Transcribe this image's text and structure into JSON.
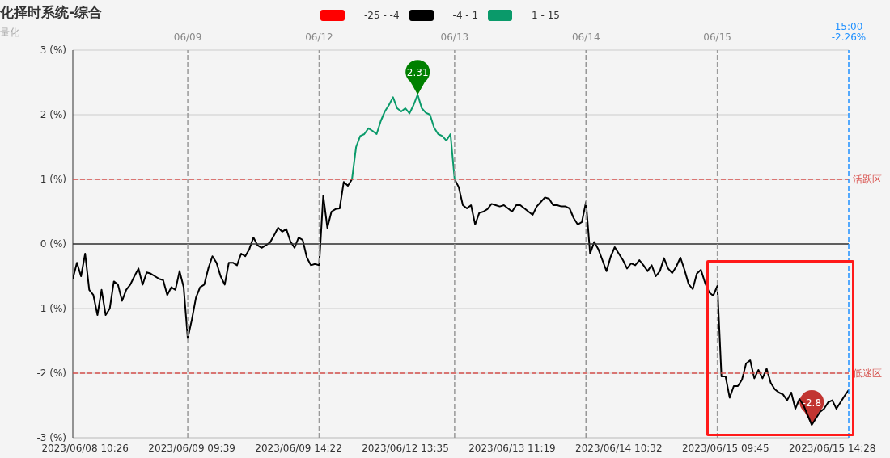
{
  "chart_data": {
    "type": "line",
    "title": "化择时系统-综合",
    "subtitle": "量化",
    "categories": [
      null,
      null,
      null,
      "2023/06/08 10:26",
      null,
      null,
      null,
      null,
      null,
      null,
      null,
      null,
      null,
      null,
      null,
      null,
      null,
      null,
      null,
      null,
      null,
      null,
      null,
      null,
      null,
      null,
      null,
      null,
      "06/09",
      "2023/06/09 09:39",
      null,
      null,
      null,
      null,
      null,
      null,
      null,
      null,
      null,
      null,
      null,
      null,
      null,
      null,
      null,
      null,
      null,
      null,
      null,
      null,
      null,
      null,
      null,
      null,
      null,
      "2023/06/09 14:22",
      null,
      null,
      null,
      null,
      "06/12",
      null,
      null,
      null,
      null,
      null,
      null,
      null,
      null,
      null,
      null,
      null,
      null,
      null,
      null,
      null,
      null,
      null,
      null,
      null,
      null,
      "2023/06/12 13:35",
      null,
      null,
      null,
      null,
      null,
      null,
      null,
      null,
      null,
      null,
      null,
      "06/13",
      null,
      null,
      null,
      null,
      null,
      null,
      null,
      null,
      null,
      null,
      null,
      null,
      null,
      "2023/06/13 11:19",
      null,
      null,
      null,
      null,
      null,
      null,
      null,
      null,
      null,
      null,
      null,
      null,
      null,
      null,
      null,
      null,
      null,
      "06/14",
      null,
      null,
      null,
      null,
      null,
      null,
      null,
      "2023/06/14 10:32",
      null,
      null,
      null,
      null,
      null,
      null,
      null,
      null,
      null,
      null,
      null,
      null,
      null,
      null,
      null,
      null,
      null,
      null,
      null,
      null,
      null,
      null,
      null,
      "06/15",
      null,
      "2023/06/15 09:45",
      null,
      null,
      null,
      null,
      null,
      null,
      null,
      null,
      null,
      null,
      null,
      null,
      null,
      null,
      null,
      null,
      null,
      null,
      null,
      null,
      null,
      null,
      null,
      null,
      null,
      "2023/06/15 14:28",
      null,
      null,
      null,
      "15:00"
    ],
    "series": [
      {
        "name": "-25 - -4",
        "color": "#ff0000",
        "values": [
          null,
          null,
          null,
          null,
          null,
          null,
          null,
          null,
          null,
          null,
          null,
          null,
          null,
          null,
          null,
          null,
          null,
          null,
          null,
          null,
          null,
          null,
          null,
          null,
          null,
          null,
          null,
          null,
          null,
          null,
          null,
          null,
          null,
          null,
          null,
          null,
          null,
          null,
          null,
          null,
          null,
          null,
          null,
          null,
          null,
          null,
          null,
          null,
          null,
          null,
          null,
          null,
          null,
          null,
          null,
          null,
          null,
          null,
          null,
          null,
          null,
          null,
          null,
          null,
          null,
          null,
          null,
          null,
          null,
          null,
          null,
          null,
          null,
          null,
          null,
          null,
          null,
          null,
          null,
          null,
          null,
          null,
          null,
          null,
          null,
          null,
          null,
          null,
          null,
          null,
          null,
          null,
          null,
          null,
          null,
          null,
          null,
          null,
          null,
          null,
          null,
          null,
          null,
          null,
          null,
          null,
          null,
          null,
          null,
          null,
          null,
          null,
          null,
          null,
          null,
          null,
          null,
          null,
          null,
          null,
          null,
          null,
          null,
          null,
          null,
          null,
          null,
          null,
          null,
          null,
          null,
          null,
          null,
          null,
          null,
          null,
          null,
          null,
          null,
          null,
          null,
          null,
          null,
          null,
          null,
          null,
          null,
          null,
          null,
          null,
          null,
          null,
          null,
          null,
          null,
          null,
          null,
          null,
          null,
          null,
          null,
          null,
          null,
          null,
          null,
          null,
          null,
          null,
          null,
          null,
          null,
          null,
          null,
          null,
          null,
          null,
          null,
          null,
          null,
          null,
          null,
          null,
          null,
          null,
          null,
          null,
          null,
          null,
          null,
          null
        ]
      },
      {
        "name": "-4 - 1",
        "color": "#000000",
        "values": [
          -0.54,
          -0.29,
          -0.5,
          -0.15,
          -0.71,
          -0.79,
          -1.1,
          -0.71,
          -1.1,
          -1.0,
          -0.58,
          -0.63,
          -0.88,
          -0.71,
          -0.63,
          -0.5,
          -0.38,
          -0.63,
          -0.44,
          -0.46,
          -0.5,
          -0.54,
          -0.56,
          -0.79,
          -0.67,
          -0.71,
          -0.42,
          -0.67,
          -1.46,
          -1.17,
          -0.83,
          -0.67,
          -0.63,
          -0.38,
          -0.19,
          -0.29,
          -0.5,
          -0.63,
          -0.29,
          -0.29,
          -0.33,
          -0.15,
          -0.19,
          -0.08,
          0.1,
          -0.02,
          -0.06,
          -0.02,
          0.02,
          0.13,
          0.25,
          0.19,
          0.23,
          0.04,
          -0.06,
          0.1,
          0.06,
          -0.21,
          -0.33,
          -0.31,
          -0.33,
          0.75,
          0.25,
          0.5,
          0.54,
          0.55,
          0.96,
          0.9,
          1.0,
          null,
          null,
          null,
          null,
          null,
          null,
          null,
          null,
          null,
          null,
          null,
          null,
          null,
          null,
          null,
          null,
          null,
          null,
          null,
          null,
          null,
          null,
          null,
          null,
          1.0,
          0.88,
          0.6,
          0.55,
          0.6,
          0.3,
          0.48,
          0.5,
          0.54,
          0.62,
          0.6,
          0.58,
          0.6,
          0.55,
          0.5,
          0.6,
          0.6,
          0.55,
          0.5,
          0.45,
          0.58,
          0.65,
          0.72,
          0.7,
          0.6,
          0.6,
          0.58,
          0.58,
          0.55,
          0.4,
          0.3,
          0.34,
          0.65,
          -0.15,
          0.03,
          -0.08,
          -0.25,
          -0.42,
          -0.2,
          -0.05,
          -0.15,
          -0.25,
          -0.38,
          -0.3,
          -0.33,
          -0.25,
          -0.33,
          -0.42,
          -0.33,
          -0.5,
          -0.42,
          -0.22,
          -0.38,
          -0.45,
          -0.35,
          -0.21,
          -0.4,
          -0.62,
          -0.7,
          -0.46,
          -0.4,
          -0.6,
          -0.75,
          -0.8,
          -0.65,
          -2.05,
          -2.05,
          -2.38,
          -2.2,
          -2.2,
          -2.1,
          -1.85,
          -1.8,
          -2.08,
          -1.95,
          -2.08,
          -1.93,
          -2.15,
          -2.25,
          -2.3,
          -2.33,
          -2.42,
          -2.3,
          -2.55,
          -2.4,
          -2.5,
          -2.65,
          -2.8,
          -2.7,
          -2.6,
          -2.55,
          -2.45,
          -2.42,
          -2.55,
          -2.45,
          -2.35,
          -2.26
        ]
      },
      {
        "name": "1 - 15",
        "color": "#0a9a6a",
        "values": [
          null,
          null,
          null,
          null,
          null,
          null,
          null,
          null,
          null,
          null,
          null,
          null,
          null,
          null,
          null,
          null,
          null,
          null,
          null,
          null,
          null,
          null,
          null,
          null,
          null,
          null,
          null,
          null,
          null,
          null,
          null,
          null,
          null,
          null,
          null,
          null,
          null,
          null,
          null,
          null,
          null,
          null,
          null,
          null,
          null,
          null,
          null,
          null,
          null,
          null,
          null,
          null,
          null,
          null,
          null,
          null,
          null,
          null,
          null,
          null,
          null,
          null,
          null,
          null,
          null,
          null,
          null,
          null,
          1.0,
          1.5,
          1.67,
          1.7,
          1.79,
          1.75,
          1.7,
          1.9,
          2.05,
          2.15,
          2.27,
          2.1,
          2.05,
          2.1,
          2.02,
          2.15,
          2.31,
          2.1,
          2.03,
          2.0,
          1.8,
          1.7,
          1.67,
          1.6,
          1.7,
          1.0,
          null,
          null,
          null,
          null,
          null,
          null,
          null,
          null,
          null,
          null,
          null,
          null,
          null,
          null,
          null,
          null,
          null,
          null,
          null,
          null,
          null,
          null,
          null,
          null,
          null,
          null,
          null,
          null,
          null,
          null,
          null,
          null,
          null,
          null,
          null,
          null,
          null,
          null,
          null,
          null,
          null,
          null,
          null,
          null,
          null,
          null,
          null,
          null,
          null,
          null,
          null,
          null,
          null,
          null,
          null,
          null,
          null,
          null,
          null,
          null,
          null,
          null,
          null,
          null,
          null,
          null,
          null,
          null,
          null,
          null,
          null,
          null,
          null,
          null,
          null,
          null,
          null,
          null,
          null,
          null,
          null,
          null,
          null,
          null,
          null,
          null,
          null,
          null,
          null,
          null,
          null,
          null,
          null,
          null,
          null,
          null
        ]
      }
    ],
    "ylim": [
      -3,
      3
    ],
    "yticks": [
      {
        "value": -3,
        "label": "-3 (%)"
      },
      {
        "value": -2,
        "label": "-2 (%)"
      },
      {
        "value": -1,
        "label": "-1 (%)"
      },
      {
        "value": 0,
        "label": "0 (%)"
      },
      {
        "value": 1,
        "label": "1 (%)"
      },
      {
        "value": 2,
        "label": "2 (%)"
      },
      {
        "value": 3,
        "label": "3 (%)"
      }
    ],
    "ref_lines": [
      {
        "axis": "y",
        "value": 0,
        "color": "#333333",
        "line_style": "solid"
      },
      {
        "axis": "y",
        "value": 1,
        "label": "活跃区",
        "color": "#d9534f",
        "line_style": "dashed"
      },
      {
        "axis": "y",
        "value": -2,
        "label": "低迷区",
        "color": "#d6524e",
        "line_style": "dashed"
      },
      {
        "axis": "x",
        "value": "06/09",
        "color": "#999999",
        "line_style": "dashed"
      },
      {
        "axis": "x",
        "value": "06/12",
        "color": "#9a9a9a",
        "line_style": "dashed"
      },
      {
        "axis": "x",
        "value": "06/13",
        "color": "#989898",
        "line_style": "dashed"
      },
      {
        "axis": "x",
        "value": "06/14",
        "color": "#979797",
        "line_style": "dashed"
      },
      {
        "axis": "x",
        "value": "06/15",
        "color": "#9b9b9b",
        "line_style": "dashed"
      },
      {
        "axis": "x",
        "value": "15:00",
        "label": "-2.26%",
        "color": "#1e90ff",
        "line_style": "dashed"
      }
    ],
    "annotations": [
      {
        "text": "2.31",
        "y": 2.31
      },
      {
        "text": "-2.8",
        "y": -2.8
      }
    ],
    "grid": "y",
    "legend": "top",
    "marker": "none",
    "line_style": "solid"
  }
}
